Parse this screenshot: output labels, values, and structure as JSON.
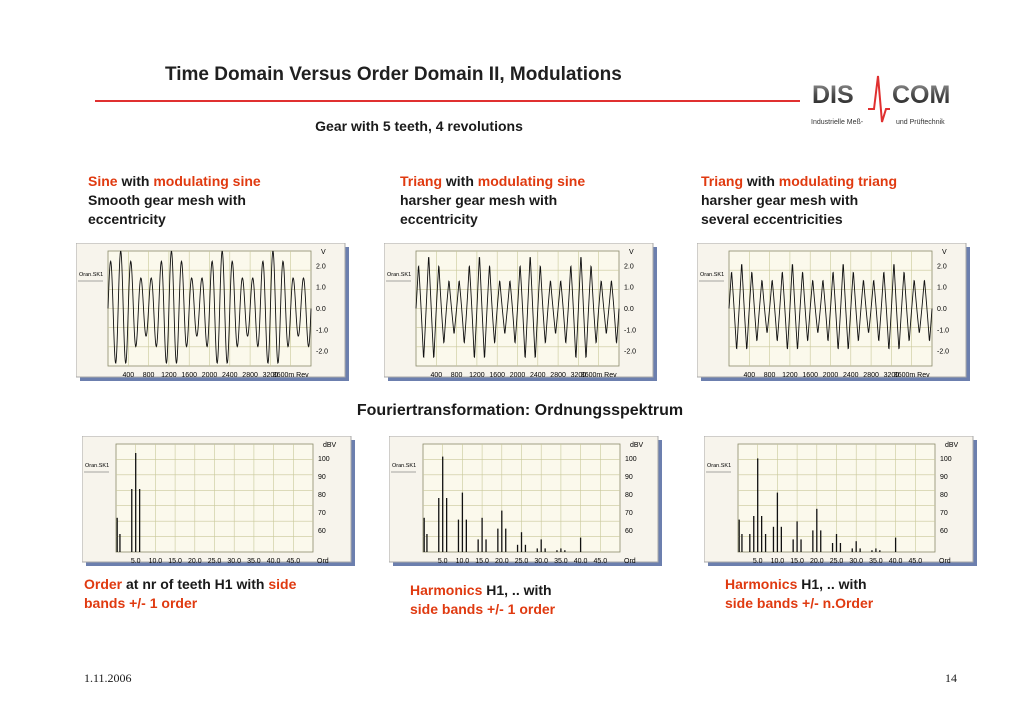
{
  "header": {
    "title": "Time Domain Versus Order Domain II, Modulations",
    "subtitle": "Gear with 5 teeth, 4 revolutions",
    "logo_left": "DIS",
    "logo_right": "COM",
    "logo_tag_left": "Industrielle Meß-",
    "logo_tag_right": "und Prüftechnik"
  },
  "time_section": {
    "panels": [
      {
        "line1_red": "Sine",
        "line1_mid": " with ",
        "line1_red2": "modulating sine",
        "line2": "Smooth gear mesh with",
        "line3": "eccentricity"
      },
      {
        "line1_red": "Triang",
        "line1_mid": " with ",
        "line1_red2": "modulating sine",
        "line2": "harsher gear mesh with",
        "line3": "eccentricity"
      },
      {
        "line1_red": "Triang",
        "line1_mid": "  with ",
        "line1_red2": "modulating triang",
        "line2": "harsher gear mesh with",
        "line3": "several eccentricities"
      }
    ]
  },
  "mid_title": "Fouriertransformation: Ordnungsspektrum",
  "order_section": {
    "panels": [
      {
        "a_red": "Order",
        "a_mid": " at nr of teeth H1 with ",
        "a_red2": "side",
        "b_red": "bands +/- 1 order",
        "b_mid": ""
      },
      {
        "a_red": "Harmonics",
        "a_mid": " H1, .. with",
        "a_red2": "",
        "b_red": "side bands +/- 1 order",
        "b_mid": ""
      },
      {
        "a_red": "Harmonics",
        "a_mid": " H1, .. with",
        "a_red2": "",
        "b_red": "side bands +/- n.Order",
        "b_mid": ""
      }
    ]
  },
  "chart_data": [
    {
      "type": "line",
      "channel": "Oran.SK1",
      "unit": "V",
      "yticks": [
        "2.0",
        "1.0",
        "0.0",
        "-1.0",
        "-2.0"
      ],
      "ylim": [
        -2.7,
        2.7
      ],
      "xticks": [
        "400",
        "800",
        "1200",
        "1600",
        "2000",
        "2400",
        "2800",
        "3200",
        "3600m Rev"
      ],
      "xlim": [
        0,
        4000
      ],
      "wave": "sine",
      "modulation": "sine",
      "teeth": 5,
      "revolutions": 4,
      "amplitude": 2.0,
      "mod_depth": 0.35
    },
    {
      "type": "line",
      "channel": "Oran.SK1",
      "unit": "V",
      "yticks": [
        "2.0",
        "1.0",
        "0.0",
        "-1.0",
        "-2.0"
      ],
      "ylim": [
        -2.7,
        2.7
      ],
      "xticks": [
        "400",
        "800",
        "1200",
        "1600",
        "2000",
        "2400",
        "2800",
        "3200",
        "3600m Rev"
      ],
      "xlim": [
        0,
        4000
      ],
      "wave": "triangle",
      "modulation": "sine",
      "teeth": 5,
      "revolutions": 4,
      "amplitude": 1.9,
      "mod_depth": 0.35
    },
    {
      "type": "line",
      "channel": "Oran.SK1",
      "unit": "V",
      "yticks": [
        "2.0",
        "1.0",
        "0.0",
        "-1.0",
        "-2.0"
      ],
      "ylim": [
        -2.7,
        2.7
      ],
      "xticks": [
        "400",
        "800",
        "1200",
        "1600",
        "2000",
        "2400",
        "2800",
        "3200",
        "3600m Rev"
      ],
      "xlim": [
        0,
        4000
      ],
      "wave": "triangle",
      "modulation": "triangle",
      "teeth": 5,
      "revolutions": 4,
      "amplitude": 1.7,
      "mod_depth": 0.3
    },
    {
      "type": "bar",
      "channel": "Oran.SK1",
      "unit": "dBV",
      "yticks": [
        "100",
        "90",
        "80",
        "70",
        "60"
      ],
      "ylim": [
        48,
        108
      ],
      "xticks": [
        "5.0",
        "10.0",
        "15.0",
        "20.0",
        "25.0",
        "30.0",
        "35.0",
        "40.0",
        "45.0",
        "Ord"
      ],
      "xlim": [
        0,
        50
      ],
      "orders": [
        0.3,
        1.0,
        4.0,
        5.0,
        6.0
      ],
      "levels": [
        67,
        58,
        83,
        103,
        83
      ]
    },
    {
      "type": "bar",
      "channel": "Oran.SK1",
      "unit": "dBV",
      "yticks": [
        "100",
        "90",
        "80",
        "70",
        "60"
      ],
      "ylim": [
        48,
        108
      ],
      "xticks": [
        "5.0",
        "10.0",
        "15.0",
        "20.0",
        "25.0",
        "30.0",
        "35.0",
        "40.0",
        "45.0",
        "Ord"
      ],
      "xlim": [
        0,
        50
      ],
      "orders": [
        0.3,
        1.0,
        4.0,
        5.0,
        6.0,
        9.0,
        10.0,
        11.0,
        14.0,
        15.0,
        16.0,
        19.0,
        20.0,
        21.0,
        24.0,
        25.0,
        26.0,
        29.0,
        30.0,
        31.0,
        34.0,
        35.0,
        36.0,
        40.0
      ],
      "levels": [
        67,
        58,
        78,
        101,
        78,
        66,
        81,
        66,
        55,
        67,
        55,
        61,
        71,
        61,
        52,
        59,
        52,
        50,
        55,
        50,
        49,
        50,
        49,
        56
      ]
    },
    {
      "type": "bar",
      "channel": "Oran.SK1",
      "unit": "dBV",
      "yticks": [
        "100",
        "90",
        "80",
        "70",
        "60"
      ],
      "ylim": [
        48,
        108
      ],
      "xticks": [
        "5.0",
        "10.0",
        "15.0",
        "20.0",
        "25.0",
        "30.0",
        "35.0",
        "40.0",
        "45.0",
        "Ord"
      ],
      "xlim": [
        0,
        50
      ],
      "orders": [
        0.3,
        1.0,
        3.0,
        4.0,
        5.0,
        6.0,
        7.0,
        9.0,
        10.0,
        11.0,
        14.0,
        15.0,
        16.0,
        19.0,
        20.0,
        21.0,
        24.0,
        25.0,
        26.0,
        29.0,
        30.0,
        31.0,
        34.0,
        35.0,
        36.0,
        40.0
      ],
      "levels": [
        66,
        58,
        58,
        68,
        100,
        68,
        58,
        62,
        81,
        62,
        55,
        65,
        55,
        60,
        72,
        60,
        53,
        58,
        53,
        50,
        54,
        50,
        49,
        50,
        49,
        56
      ]
    }
  ],
  "footer": {
    "date": "1.11.2006",
    "page": "14"
  }
}
